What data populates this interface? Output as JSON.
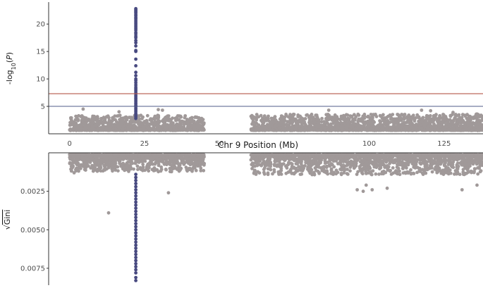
{
  "chart_data": [
    {
      "type": "scatter",
      "panel": "top",
      "ylabel": "-log10(P)",
      "ylim": [
        0,
        24
      ],
      "yticks": [
        5,
        10,
        15,
        20
      ],
      "xlim": [
        -7,
        138
      ],
      "grid": false,
      "colors": {
        "points": "#a09999",
        "highlight": "#484a80",
        "line_suggestive": "#4f5b8a",
        "line_significant": "#b5584a"
      },
      "threshold_lines": [
        {
          "name": "suggestive",
          "y": 5
        },
        {
          "name": "genome-wide",
          "y": 7.3
        }
      ],
      "segments": [
        {
          "start": 0,
          "end": 45,
          "base": 0.6,
          "spread": 2.7
        },
        {
          "start": 60.5,
          "end": 138,
          "base": 0.6,
          "spread": 2.9
        }
      ],
      "highlight_locus": {
        "x": 22.1,
        "y": [
          22.8,
          22.6,
          22.4,
          22.2,
          22.0,
          21.7,
          21.5,
          21.2,
          21.0,
          20.7,
          20.4,
          20.1,
          19.8,
          19.5,
          19.2,
          18.9,
          18.5,
          18.2,
          17.8,
          17.5,
          17.0,
          16.6,
          16.0,
          15.2,
          15.0,
          13.6,
          12.4,
          11.2,
          10.6,
          10.0,
          9.7,
          9.3,
          8.9,
          8.5,
          8.2,
          7.9,
          7.6,
          7.3,
          7.0,
          6.7,
          6.4,
          6.1,
          5.8,
          5.5,
          5.2,
          4.9,
          4.6,
          4.3,
          4.0,
          3.7,
          3.4,
          3.1,
          2.8
        ]
      },
      "outliers": [
        {
          "x": 4.5,
          "y": 4.5
        },
        {
          "x": 29.6,
          "y": 4.4
        },
        {
          "x": 31.0,
          "y": 4.3
        },
        {
          "x": 16.5,
          "y": 4.0
        },
        {
          "x": 86.5,
          "y": 4.3
        },
        {
          "x": 117.5,
          "y": 4.3
        },
        {
          "x": 120.5,
          "y": 4.2
        },
        {
          "x": 128.0,
          "y": 3.9
        },
        {
          "x": 136.0,
          "y": 3.6
        }
      ]
    },
    {
      "type": "scatter",
      "panel": "bottom",
      "ylabel": "√Gini",
      "ylim": [
        0,
        0.0086
      ],
      "yticks": [
        0.0025,
        0.005,
        0.0075
      ],
      "ytick_labels": [
        "0.0025",
        "0.0050",
        "0.0075"
      ],
      "xlim": [
        -7,
        138
      ],
      "reversed": true,
      "grid": false,
      "segments": [
        {
          "start": 0,
          "end": 45,
          "base": 0.0001,
          "spread": 0.0011
        },
        {
          "start": 60.5,
          "end": 138,
          "base": 0.0001,
          "spread": 0.0013
        }
      ],
      "highlight_locus": {
        "x": 22.1,
        "y": [
          0.0083,
          0.0081,
          0.0078,
          0.0076,
          0.0074,
          0.0072,
          0.007,
          0.0068,
          0.0066,
          0.0064,
          0.0062,
          0.006,
          0.0058,
          0.0056,
          0.0054,
          0.0052,
          0.005,
          0.0048,
          0.0046,
          0.0044,
          0.0042,
          0.004,
          0.0038,
          0.0036,
          0.0034,
          0.0032,
          0.003,
          0.0028,
          0.0026,
          0.0024,
          0.0022,
          0.002,
          0.0018,
          0.0016,
          0.0014
        ]
      },
      "outliers": [
        {
          "x": 13.0,
          "y": 0.0039
        },
        {
          "x": 33.0,
          "y": 0.0026
        },
        {
          "x": 1.5,
          "y": 0.0013
        },
        {
          "x": 96.0,
          "y": 0.0024
        },
        {
          "x": 98.0,
          "y": 0.0025
        },
        {
          "x": 99.0,
          "y": 0.0021
        },
        {
          "x": 101.0,
          "y": 0.0024
        },
        {
          "x": 106.0,
          "y": 0.0023
        },
        {
          "x": 131.0,
          "y": 0.0024
        },
        {
          "x": 136.0,
          "y": 0.0021
        },
        {
          "x": 77.0,
          "y": 0.0014
        }
      ]
    }
  ],
  "xaxis": {
    "title": "Chr 9 Position (Mb)",
    "ticks": [
      0,
      25,
      50,
      100,
      125
    ]
  }
}
